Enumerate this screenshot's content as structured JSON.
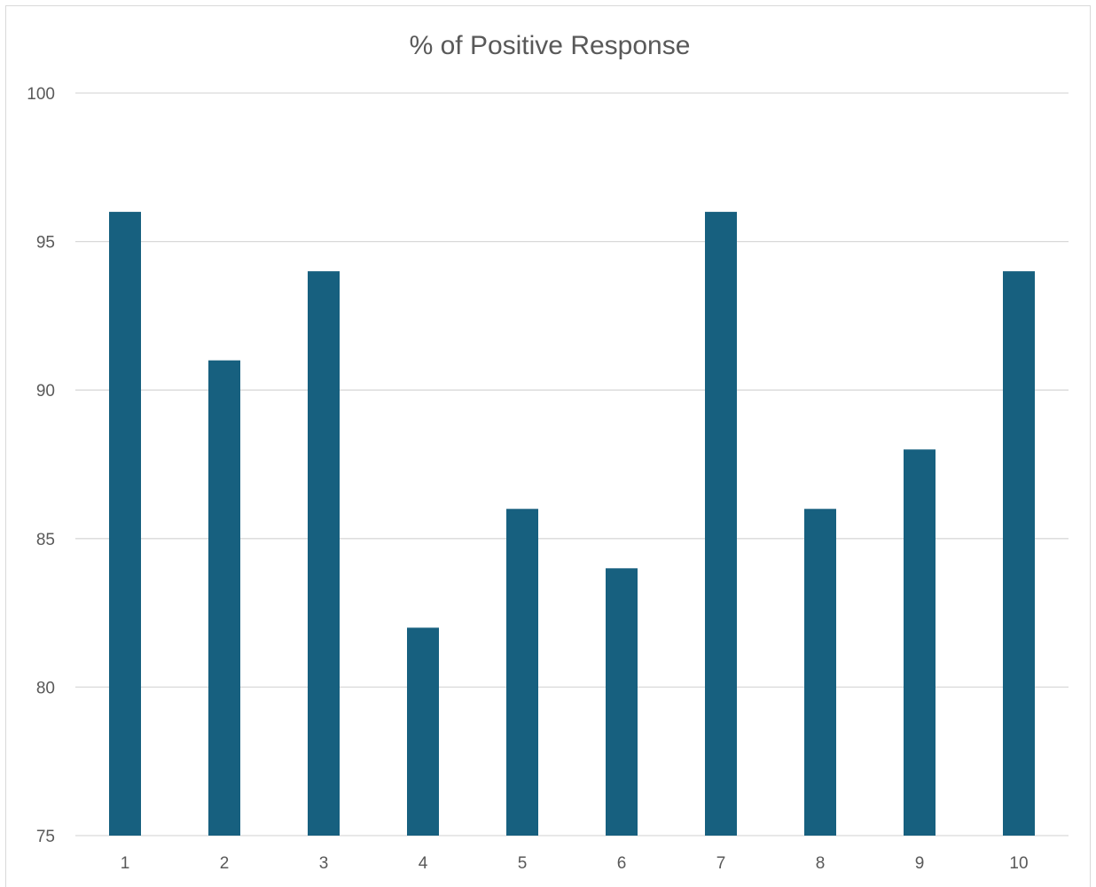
{
  "chart_data": {
    "type": "bar",
    "title": "% of Positive Response",
    "xlabel": "",
    "ylabel": "",
    "categories": [
      "1",
      "2",
      "3",
      "4",
      "5",
      "6",
      "7",
      "8",
      "9",
      "10"
    ],
    "values": [
      96,
      91,
      94,
      82,
      86,
      84,
      96,
      86,
      88,
      94
    ],
    "ylim": [
      75,
      100
    ],
    "yticks": [
      75,
      80,
      85,
      90,
      95,
      100
    ],
    "grid": true,
    "legend": "none",
    "bar_color": "#17607f",
    "grid_color": "#d9d9d9"
  }
}
